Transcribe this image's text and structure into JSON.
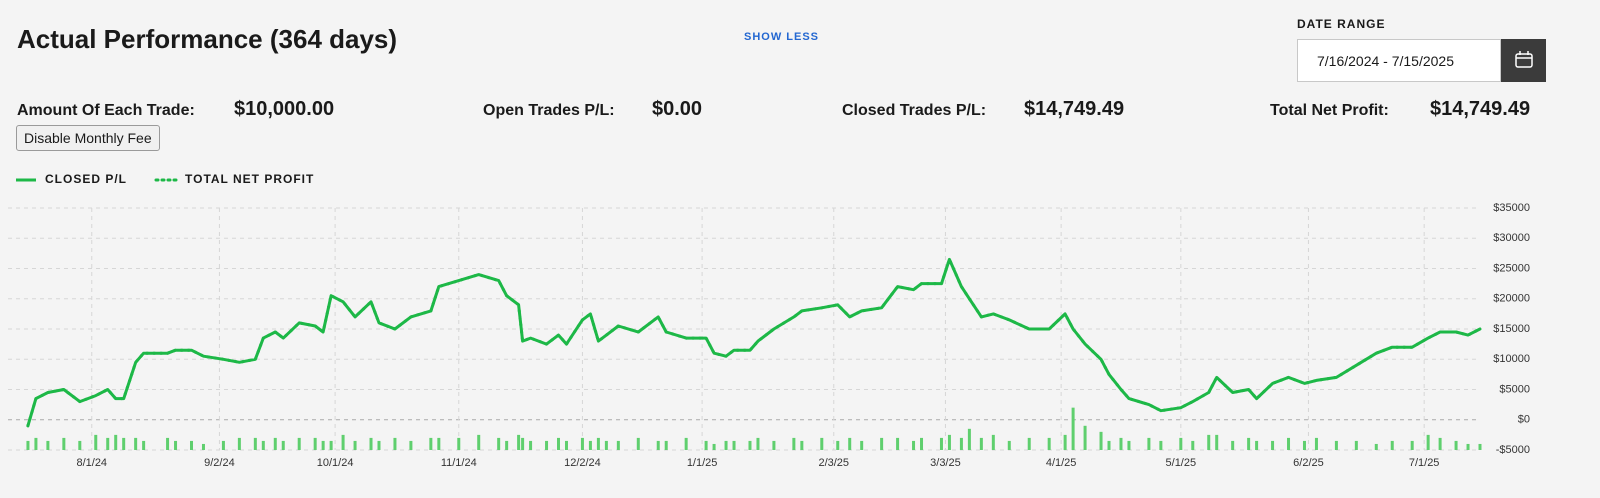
{
  "header": {
    "title": "Actual Performance (364 days)",
    "show_less": "SHOW LESS",
    "date_range_label": "DATE RANGE",
    "date_range_value": "7/16/2024 - 7/15/2025"
  },
  "stats": [
    {
      "label": "Amount Of Each Trade:",
      "value": "$10,000.00"
    },
    {
      "label": "Open Trades P/L:",
      "value": "$0.00"
    },
    {
      "label": "Closed Trades P/L:",
      "value": "$14,749.49"
    },
    {
      "label": "Total Net Profit:",
      "value": "$14,749.49"
    }
  ],
  "fee_button": "Disable Monthly Fee",
  "chart_data": {
    "type": "line",
    "x": [
      "7/16/24",
      "7/18/24",
      "7/21/24",
      "7/25/24",
      "7/29/24",
      "8/2/24",
      "8/5/24",
      "8/7/24",
      "8/9/24",
      "8/12/24",
      "8/14/24",
      "8/20/24",
      "8/22/24",
      "8/26/24",
      "8/29/24",
      "9/3/24",
      "9/7/24",
      "9/11/24",
      "9/13/24",
      "9/16/24",
      "9/18/24",
      "9/22/24",
      "9/26/24",
      "9/28/24",
      "9/30/24",
      "10/3/24",
      "10/6/24",
      "10/10/24",
      "10/12/24",
      "10/16/24",
      "10/20/24",
      "10/25/24",
      "10/27/24",
      "11/1/24",
      "11/6/24",
      "11/11/24",
      "11/13/24",
      "11/16/24",
      "11/17/24",
      "11/19/24",
      "11/23/24",
      "11/26/24",
      "11/28/24",
      "12/2/24",
      "12/4/24",
      "12/6/24",
      "12/8/24",
      "12/11/24",
      "12/16/24",
      "12/21/24",
      "12/23/24",
      "12/28/24",
      "1/2/25",
      "1/4/25",
      "1/7/25",
      "1/9/25",
      "1/13/25",
      "1/15/25",
      "1/19/25",
      "1/24/25",
      "1/26/25",
      "1/31/25",
      "2/4/25",
      "2/7/25",
      "2/10/25",
      "2/15/25",
      "2/19/25",
      "2/23/25",
      "2/25/25",
      "3/2/25",
      "3/4/25",
      "3/7/25",
      "3/9/25",
      "3/12/25",
      "3/15/25",
      "3/19/25",
      "3/24/25",
      "3/29/25",
      "4/2/25",
      "4/4/25",
      "4/7/25",
      "4/11/25",
      "4/13/25",
      "4/16/25",
      "4/18/25",
      "4/23/25",
      "4/26/25",
      "5/1/25",
      "5/4/25",
      "5/8/25",
      "5/10/25",
      "5/14/25",
      "5/18/25",
      "5/20/25",
      "5/24/25",
      "5/28/25",
      "6/1/25",
      "6/4/25",
      "6/9/25",
      "6/14/25",
      "6/19/25",
      "6/23/25",
      "6/28/25",
      "7/2/25",
      "7/5/25",
      "7/9/25",
      "7/12/25",
      "7/15/25"
    ],
    "series": [
      {
        "name": "CLOSED P/L",
        "color": "#1db847",
        "style": "solid",
        "values": [
          -1000,
          3500,
          4500,
          5000,
          3000,
          4000,
          5000,
          3500,
          3500,
          9500,
          11000,
          11000,
          11500,
          11500,
          10500,
          10000,
          9500,
          10000,
          13500,
          14500,
          13500,
          16000,
          15500,
          14500,
          20500,
          19500,
          17000,
          19500,
          16000,
          15000,
          17000,
          18000,
          22000,
          23000,
          24000,
          23000,
          20500,
          19000,
          13000,
          13500,
          12500,
          14000,
          12500,
          16500,
          17500,
          13000,
          14000,
          15500,
          14500,
          17000,
          14500,
          13500,
          13500,
          11000,
          10500,
          11500,
          11500,
          13000,
          15000,
          17000,
          18000,
          18500,
          19000,
          17000,
          18000,
          18500,
          22000,
          21500,
          22500,
          22500,
          26500,
          22000,
          20000,
          17000,
          17500,
          16500,
          15000,
          15000,
          17500,
          15000,
          12500,
          10000,
          7500,
          5000,
          3500,
          2500,
          1500,
          2000,
          3000,
          4500,
          7000,
          4500,
          5000,
          3500,
          6000,
          7000,
          6000,
          6500,
          7000,
          9000,
          11000,
          12000,
          12000,
          13500,
          14500,
          14500,
          14000,
          15000
        ]
      },
      {
        "name": "TOTAL NET PROFIT",
        "color": "#1db847",
        "style": "dotted",
        "values": [
          -1000,
          3500,
          4500,
          5000,
          3000,
          4000,
          5000,
          3500,
          3500,
          9500,
          11000,
          11000,
          11500,
          11500,
          10500,
          10000,
          9500,
          10000,
          13500,
          14500,
          13500,
          16000,
          15500,
          14500,
          20500,
          19500,
          17000,
          19500,
          16000,
          15000,
          17000,
          18000,
          22000,
          23000,
          24000,
          23000,
          20500,
          19000,
          13000,
          13500,
          12500,
          14000,
          12500,
          16500,
          17500,
          13000,
          14000,
          15500,
          14500,
          17000,
          14500,
          13500,
          13500,
          11000,
          10500,
          11500,
          11500,
          13000,
          15000,
          17000,
          18000,
          18500,
          19000,
          17000,
          18000,
          18500,
          22000,
          21500,
          22500,
          22500,
          26500,
          22000,
          20000,
          17000,
          17500,
          16500,
          15000,
          15000,
          17500,
          15000,
          12500,
          10000,
          7500,
          5000,
          3500,
          2500,
          1500,
          2000,
          3000,
          4500,
          7000,
          4500,
          5000,
          3500,
          6000,
          7000,
          6000,
          6500,
          7000,
          9000,
          11000,
          12000,
          12000,
          13500,
          14500,
          14500,
          14000,
          15000
        ]
      }
    ],
    "volume": {
      "color": "#5fcf6e",
      "values": [
        -3500,
        -3000,
        -3500,
        -3000,
        -3500,
        -2500,
        -3000,
        -2500,
        -3000,
        -3000,
        -3500,
        -3000,
        -3500,
        -3500,
        -4000,
        -3500,
        -3000,
        -3000,
        -3500,
        -3000,
        -3500,
        -3000,
        -3000,
        -3500,
        -3500,
        -2500,
        -3500,
        -3000,
        -3500,
        -3000,
        -3500,
        -3000,
        -3000,
        -3000,
        -2500,
        -3000,
        -3500,
        -2500,
        -3000,
        -3500,
        -3500,
        -3000,
        -3500,
        -3000,
        -3500,
        -3000,
        -3500,
        -3500,
        -3000,
        -3500,
        -3500,
        -3000,
        -3500,
        -4000,
        -3500,
        -3500,
        -3500,
        -3000,
        -3500,
        -3000,
        -3500,
        -3000,
        -3500,
        -3000,
        -3500,
        -3000,
        -3000,
        -3500,
        -3000,
        -3000,
        -2500,
        -3000,
        -1500,
        -3000,
        -2500,
        -3500,
        -3000,
        -3000,
        -2500,
        2000,
        -1000,
        -2000,
        -3500,
        -3000,
        -3500,
        -3000,
        -3500,
        -3000,
        -3500,
        -2500,
        -2500,
        -3500,
        -3000,
        -3500,
        -3500,
        -3000,
        -3500,
        -3000,
        -3500,
        -3500,
        -4000,
        -3500,
        -3500,
        -2500,
        -3000,
        -3500,
        -4000,
        -4000
      ]
    },
    "xlim": [
      "7/11/24",
      "7/15/25"
    ],
    "xticks": [
      "8/1/24",
      "9/2/24",
      "10/1/24",
      "11/1/24",
      "12/2/24",
      "1/1/25",
      "2/3/25",
      "3/3/25",
      "4/1/25",
      "5/1/25",
      "6/2/25",
      "7/1/25"
    ],
    "ylim": [
      -5000,
      35000
    ],
    "yticks": [
      {
        "value": -5000,
        "label": "-$5000"
      },
      {
        "value": 0,
        "label": "$0"
      },
      {
        "value": 5000,
        "label": "$5000"
      },
      {
        "value": 10000,
        "label": "$10000"
      },
      {
        "value": 15000,
        "label": "$15000"
      },
      {
        "value": 20000,
        "label": "$20000"
      },
      {
        "value": 25000,
        "label": "$25000"
      },
      {
        "value": 30000,
        "label": "$30000"
      },
      {
        "value": 35000,
        "label": "$35000"
      }
    ],
    "grid": true
  }
}
